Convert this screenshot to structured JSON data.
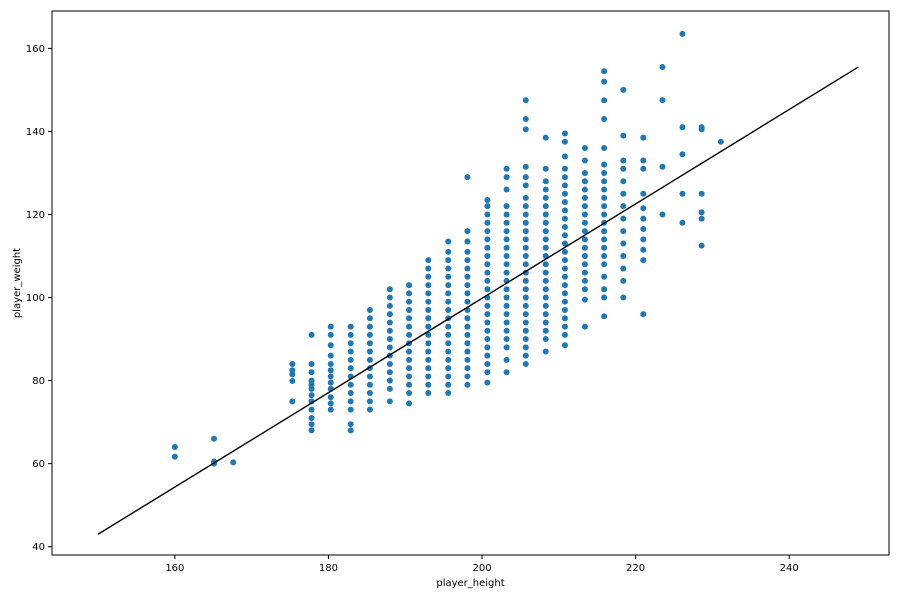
{
  "chart_data": {
    "type": "scatter",
    "xlabel": "player_height",
    "ylabel": "player_weight",
    "xlim": [
      144,
      253
    ],
    "ylim": [
      38,
      169
    ],
    "xticks": [
      160,
      180,
      200,
      220,
      240
    ],
    "yticks": [
      40,
      60,
      80,
      100,
      120,
      140,
      160
    ],
    "grid": false,
    "point_color": "#1f77b4",
    "line_color": "#000000",
    "fit_line": {
      "x": [
        150,
        249
      ],
      "y": [
        43,
        155.5
      ]
    },
    "columns": [
      {
        "x": 160.0,
        "y": [
          61.7,
          64.0
        ]
      },
      {
        "x": 165.1,
        "y": [
          60.0,
          60.5,
          66.0
        ]
      },
      {
        "x": 167.6,
        "y": [
          60.3
        ]
      },
      {
        "x": 175.3,
        "y": [
          75.0,
          79.9,
          81.5,
          82.5,
          84.0
        ]
      },
      {
        "x": 177.8,
        "y": [
          68.0,
          69.5,
          71.0,
          73.0,
          75.0,
          76.5,
          78.0,
          79.0,
          80.0,
          82.0,
          84.0,
          91.0
        ]
      },
      {
        "x": 180.3,
        "y": [
          73.0,
          74.5,
          76.0,
          78.0,
          79.5,
          81.0,
          82.5,
          84.0,
          86.0,
          88.5,
          91.0,
          93.0
        ]
      },
      {
        "x": 182.9,
        "y": [
          68.0,
          69.5,
          73.0,
          75.0,
          77.0,
          79.0,
          81.0,
          83.0,
          85.0,
          87.0,
          89.0,
          91.0,
          93.0
        ]
      },
      {
        "x": 185.4,
        "y": [
          73.0,
          75.0,
          77.0,
          79.0,
          81.0,
          83.0,
          85.0,
          87.0,
          89.0,
          91.0,
          93.0,
          95.0,
          97.0
        ]
      },
      {
        "x": 188.0,
        "y": [
          75.0,
          78.0,
          80.0,
          82.0,
          84.0,
          86.0,
          88.0,
          90.0,
          92.0,
          94.0,
          96.0,
          98.0,
          100.0,
          102.0
        ]
      },
      {
        "x": 190.5,
        "y": [
          74.5,
          77.0,
          79.0,
          81.0,
          83.0,
          85.0,
          87.0,
          89.0,
          91.0,
          93.0,
          95.0,
          97.0,
          99.0,
          101.0,
          103.0
        ]
      },
      {
        "x": 193.0,
        "y": [
          77.0,
          79.0,
          81.0,
          83.0,
          85.0,
          87.0,
          89.0,
          91.0,
          93.0,
          95.0,
          97.0,
          99.0,
          101.0,
          103.0,
          105.0,
          107.0,
          109.0
        ]
      },
      {
        "x": 195.6,
        "y": [
          77.0,
          79.0,
          81.0,
          83.0,
          85.0,
          87.0,
          89.0,
          91.0,
          93.0,
          95.0,
          97.0,
          99.0,
          101.0,
          103.0,
          105.0,
          107.0,
          109.0,
          111.0,
          113.5
        ]
      },
      {
        "x": 198.1,
        "y": [
          79.0,
          81.0,
          83.0,
          85.0,
          87.0,
          89.0,
          91.0,
          93.0,
          95.0,
          97.0,
          99.0,
          101.0,
          103.0,
          105.0,
          107.0,
          109.0,
          111.0,
          113.5,
          116.0,
          129.0
        ]
      },
      {
        "x": 200.7,
        "y": [
          79.5,
          82.0,
          84.0,
          86.0,
          88.0,
          90.0,
          92.0,
          94.0,
          96.0,
          98.0,
          100.0,
          102.0,
          104.0,
          106.0,
          108.0,
          110.0,
          112.0,
          114.0,
          116.0,
          118.0,
          120.0,
          122.0,
          123.5
        ]
      },
      {
        "x": 203.2,
        "y": [
          82.0,
          85.0,
          88.0,
          90.0,
          92.0,
          94.0,
          96.0,
          98.0,
          100.0,
          102.0,
          104.0,
          106.0,
          108.0,
          110.0,
          112.0,
          114.0,
          116.0,
          118.0,
          120.0,
          122.0,
          126.0,
          129.0,
          131.0
        ]
      },
      {
        "x": 205.7,
        "y": [
          84.0,
          86.0,
          88.0,
          90.0,
          92.0,
          94.0,
          96.0,
          98.0,
          100.0,
          102.0,
          104.0,
          106.0,
          108.0,
          110.0,
          112.0,
          114.0,
          116.0,
          118.0,
          120.0,
          122.0,
          124.0,
          127.0,
          129.0,
          131.5,
          140.5,
          143.0,
          147.5
        ]
      },
      {
        "x": 208.3,
        "y": [
          87.0,
          90.0,
          92.0,
          94.0,
          96.0,
          98.0,
          100.0,
          102.0,
          104.0,
          106.0,
          108.0,
          110.0,
          112.0,
          114.0,
          116.0,
          118.0,
          120.0,
          122.0,
          124.0,
          126.0,
          128.0,
          131.0,
          138.5
        ]
      },
      {
        "x": 210.8,
        "y": [
          88.5,
          91.0,
          93.0,
          95.0,
          97.0,
          99.0,
          101.0,
          103.0,
          105.0,
          107.0,
          109.0,
          111.0,
          113.0,
          115.0,
          117.0,
          119.0,
          121.0,
          123.0,
          125.0,
          127.0,
          129.0,
          131.0,
          134.0,
          137.5,
          139.5
        ]
      },
      {
        "x": 213.4,
        "y": [
          93.0,
          99.5,
          102.0,
          104.0,
          106.0,
          108.0,
          110.0,
          112.0,
          114.0,
          116.0,
          118.0,
          120.0,
          122.0,
          124.0,
          126.0,
          128.0,
          130.0,
          133.0,
          136.0
        ]
      },
      {
        "x": 215.9,
        "y": [
          95.5,
          100.0,
          102.0,
          105.0,
          108.0,
          110.0,
          112.0,
          114.0,
          116.0,
          118.0,
          120.0,
          122.0,
          124.0,
          126.0,
          128.0,
          130.0,
          132.0,
          136.0,
          143.0,
          147.5,
          152.0,
          154.5
        ]
      },
      {
        "x": 218.4,
        "y": [
          100.0,
          104.0,
          107.0,
          110.0,
          113.0,
          116.0,
          119.0,
          122.0,
          125.0,
          128.0,
          131.0,
          133.0,
          139.0,
          150.0
        ]
      },
      {
        "x": 221.0,
        "y": [
          96.0,
          109.0,
          111.5,
          114.0,
          116.5,
          119.0,
          121.5,
          125.0,
          131.0,
          133.0,
          138.5
        ]
      },
      {
        "x": 223.5,
        "y": [
          120.0,
          131.5,
          147.5,
          155.5
        ]
      },
      {
        "x": 226.1,
        "y": [
          118.0,
          125.0,
          134.5,
          141.0,
          163.5
        ]
      },
      {
        "x": 228.6,
        "y": [
          112.5,
          119.0,
          120.5,
          125.0,
          140.5,
          141.0
        ]
      },
      {
        "x": 231.1,
        "y": [
          137.5
        ]
      }
    ]
  }
}
